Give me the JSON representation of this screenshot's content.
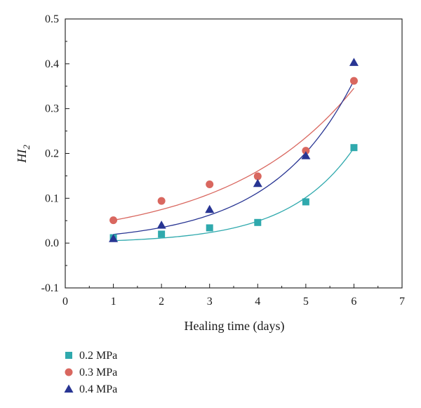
{
  "chart_data": {
    "type": "scatter",
    "xlabel": "Healing time (days)",
    "ylabel_main": "HI",
    "ylabel_sub": "2",
    "xlim": [
      0,
      7
    ],
    "ylim": [
      -0.1,
      0.5
    ],
    "xticks": [
      0,
      1,
      2,
      3,
      4,
      5,
      6,
      7
    ],
    "yticks": [
      -0.1,
      0.0,
      0.1,
      0.2,
      0.3,
      0.4,
      0.5
    ],
    "xtick_labels": [
      "0",
      "1",
      "2",
      "3",
      "4",
      "5",
      "6",
      "7"
    ],
    "ytick_labels": [
      "-0.1",
      "0.0",
      "0.1",
      "0.2",
      "0.3",
      "0.4",
      "0.5"
    ],
    "grid": false,
    "legend_position": "bottom-left",
    "series": [
      {
        "name": "0.2 MPa",
        "marker": "square",
        "color": "#2fa9ad",
        "x": [
          1,
          2,
          3,
          4,
          5,
          6
        ],
        "y": [
          0.012,
          0.02,
          0.034,
          0.046,
          0.092,
          0.213
        ],
        "fit": {
          "type": "exponential",
          "a": 0.00258,
          "b": 0.735,
          "x_range": [
            1,
            6
          ]
        }
      },
      {
        "name": "0.3 MPa",
        "marker": "circle",
        "color": "#d9675f",
        "x": [
          1,
          2,
          3,
          4,
          5,
          6
        ],
        "y": [
          0.051,
          0.094,
          0.131,
          0.149,
          0.206,
          0.362
        ],
        "fit": {
          "type": "exponential",
          "a": 0.03479,
          "b": 0.3826,
          "x_range": [
            1,
            6
          ]
        }
      },
      {
        "name": "0.4 MPa",
        "marker": "triangle",
        "color": "#283593",
        "x": [
          1,
          2,
          3,
          4,
          5,
          6
        ],
        "y": [
          0.01,
          0.04,
          0.075,
          0.133,
          0.195,
          0.403
        ],
        "fit": {
          "type": "exponential",
          "a": 0.01078,
          "b": 0.5861,
          "x_range": [
            1,
            6
          ]
        }
      }
    ]
  }
}
